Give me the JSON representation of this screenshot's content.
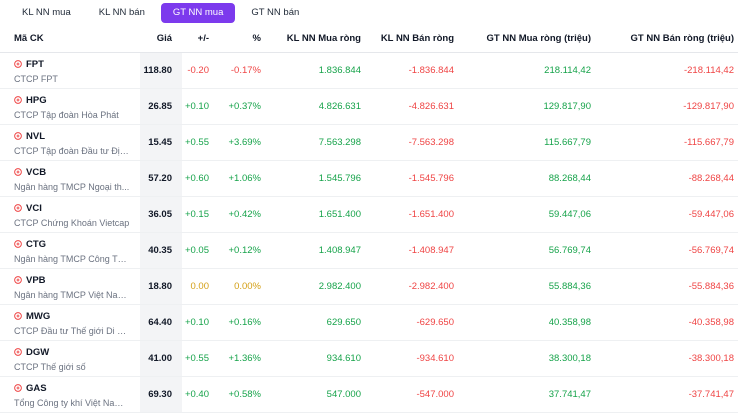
{
  "tabs": [
    {
      "label": "KL NN mua",
      "active": false
    },
    {
      "label": "KL NN bán",
      "active": false
    },
    {
      "label": "GT NN mua",
      "active": true
    },
    {
      "label": "GT NN bán",
      "active": false
    }
  ],
  "colors": {
    "accent": "#7c3aed",
    "up": "#16a34a",
    "down": "#ef4444",
    "flat": "#d4a017"
  },
  "table": {
    "headers": [
      "Mã CK",
      "Giá",
      "+/-",
      "%",
      "KL NN Mua ròng",
      "KL NN Bán ròng",
      "GT NN Mua ròng (triệu)",
      "GT NN Bán ròng (triệu)"
    ],
    "rows": [
      {
        "symbol": "FPT",
        "name": "CTCP FPT",
        "price": "118.80",
        "change": "-0.20",
        "pct": "-0.17%",
        "trend": "down",
        "kl_mua": "1.836.844",
        "kl_ban": "-1.836.844",
        "gt_mua": "218.114,42",
        "gt_ban": "-218.114,42"
      },
      {
        "symbol": "HPG",
        "name": "CTCP Tập đoàn Hòa Phát",
        "price": "26.85",
        "change": "+0.10",
        "pct": "+0.37%",
        "trend": "up",
        "kl_mua": "4.826.631",
        "kl_ban": "-4.826.631",
        "gt_mua": "129.817,90",
        "gt_ban": "-129.817,90"
      },
      {
        "symbol": "NVL",
        "name": "CTCP Tập đoàn Đầu tư Địa ...",
        "price": "15.45",
        "change": "+0.55",
        "pct": "+3.69%",
        "trend": "up",
        "kl_mua": "7.563.298",
        "kl_ban": "-7.563.298",
        "gt_mua": "115.667,79",
        "gt_ban": "-115.667,79"
      },
      {
        "symbol": "VCB",
        "name": "Ngân hàng TMCP Ngoại th...",
        "price": "57.20",
        "change": "+0.60",
        "pct": "+1.06%",
        "trend": "up",
        "kl_mua": "1.545.796",
        "kl_ban": "-1.545.796",
        "gt_mua": "88.268,44",
        "gt_ban": "-88.268,44"
      },
      {
        "symbol": "VCI",
        "name": "CTCP Chứng Khoán Vietcap",
        "price": "36.05",
        "change": "+0.15",
        "pct": "+0.42%",
        "trend": "up",
        "kl_mua": "1.651.400",
        "kl_ban": "-1.651.400",
        "gt_mua": "59.447,06",
        "gt_ban": "-59.447,06"
      },
      {
        "symbol": "CTG",
        "name": "Ngân hàng TMCP Công Th...",
        "price": "40.35",
        "change": "+0.05",
        "pct": "+0.12%",
        "trend": "up",
        "kl_mua": "1.408.947",
        "kl_ban": "-1.408.947",
        "gt_mua": "56.769,74",
        "gt_ban": "-56.769,74"
      },
      {
        "symbol": "VPB",
        "name": "Ngân hàng TMCP Việt Nam ...",
        "price": "18.80",
        "change": "0.00",
        "pct": "0.00%",
        "trend": "flat",
        "kl_mua": "2.982.400",
        "kl_ban": "-2.982.400",
        "gt_mua": "55.884,36",
        "gt_ban": "-55.884,36"
      },
      {
        "symbol": "MWG",
        "name": "CTCP Đầu tư Thế giới Di độ...",
        "price": "64.40",
        "change": "+0.10",
        "pct": "+0.16%",
        "trend": "up",
        "kl_mua": "629.650",
        "kl_ban": "-629.650",
        "gt_mua": "40.358,98",
        "gt_ban": "-40.358,98"
      },
      {
        "symbol": "DGW",
        "name": "CTCP Thế giới số",
        "price": "41.00",
        "change": "+0.55",
        "pct": "+1.36%",
        "trend": "up",
        "kl_mua": "934.610",
        "kl_ban": "-934.610",
        "gt_mua": "38.300,18",
        "gt_ban": "-38.300,18"
      },
      {
        "symbol": "GAS",
        "name": "Tổng Công ty khí Việt Nam ...",
        "price": "69.30",
        "change": "+0.40",
        "pct": "+0.58%",
        "trend": "up",
        "kl_mua": "547.000",
        "kl_ban": "-547.000",
        "gt_mua": "37.741,47",
        "gt_ban": "-37.741,47"
      }
    ]
  }
}
